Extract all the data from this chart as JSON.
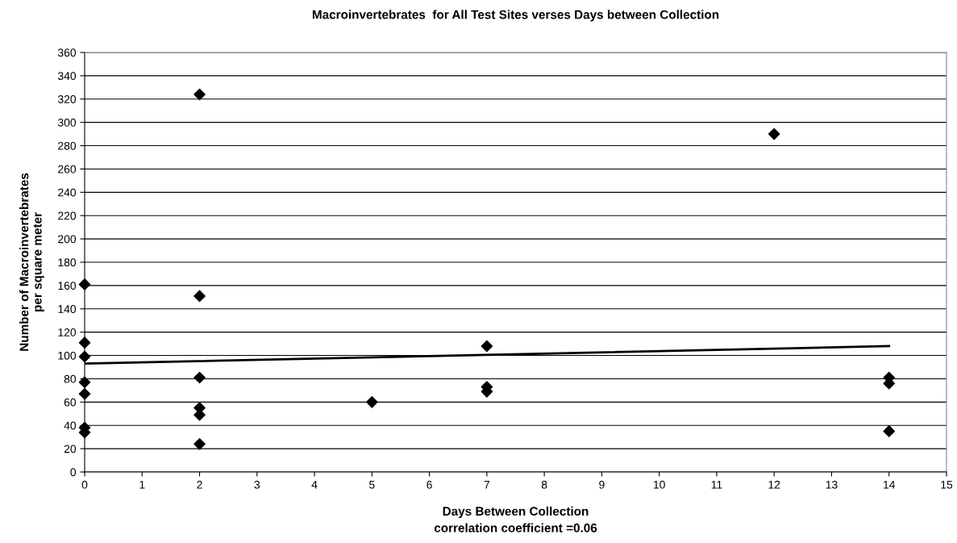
{
  "chart_data": {
    "type": "scatter",
    "title": "Macroinvertebrates  for All Test Sites verses Days between Collection",
    "xlabel": "Days Between Collection",
    "ylabel": "Number of Macroinvertebrates\nper square meter",
    "annotations": [
      "correlation coefficient =0.06"
    ],
    "series": [
      {
        "color": "#000000",
        "marker": "diamond",
        "x": [
          0,
          0,
          0,
          0,
          0,
          0,
          0,
          2,
          2,
          2,
          2,
          2,
          2,
          5,
          7,
          7,
          7,
          12,
          14,
          14,
          14
        ],
        "values": [
          161,
          111,
          99,
          77,
          67,
          38,
          34,
          324,
          151,
          81,
          55,
          49,
          24,
          60,
          108,
          73,
          69,
          290,
          81,
          76,
          35
        ]
      },
      {
        "type": "line",
        "color": "#000000",
        "marker": "none",
        "x": [
          0,
          14
        ],
        "values": [
          93,
          108
        ]
      }
    ],
    "xlim": [
      0,
      15
    ],
    "xticks": [
      0,
      1,
      2,
      3,
      4,
      5,
      6,
      7,
      8,
      9,
      10,
      11,
      12,
      13,
      14,
      15
    ],
    "ylim": [
      0,
      360
    ],
    "yticks": [
      0,
      20,
      40,
      60,
      80,
      100,
      120,
      140,
      160,
      180,
      200,
      220,
      240,
      260,
      280,
      300,
      320,
      340,
      360
    ],
    "grid": "y",
    "legend": false
  }
}
